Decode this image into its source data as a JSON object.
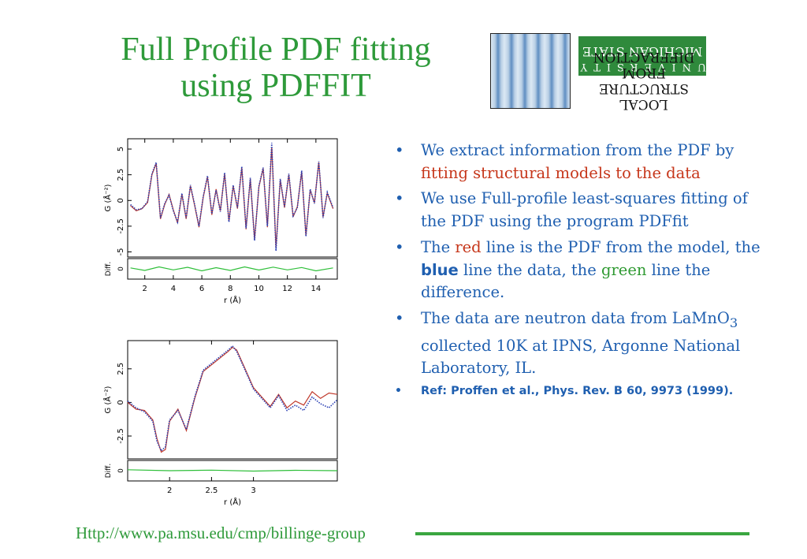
{
  "slide": {
    "title_line1": "Full Profile PDF fitting",
    "title_line2": "using PDFFIT",
    "footer_url": "Http://www.pa.msu.edu/cmp/billinge-group"
  },
  "logo": {
    "msu_top": "UNIVERSITY",
    "msu_bottom": "MICHIGAN STATE",
    "lsd_line1": "LOCAL STRUCTURE",
    "lsd_line2": "FROM DIFFRACTION"
  },
  "bullets": {
    "b1_a": "We extract information from the PDF by ",
    "b1_b": "fitting structural models to the data",
    "b2": "We use Full-profile least-squares fitting of the PDF using the program PDFfit",
    "b3_a": "The ",
    "b3_b": "red",
    "b3_c": " line is the PDF from the model, the ",
    "b3_d": "blue",
    "b3_e": " line the data, the ",
    "b3_f": "green",
    "b3_g": " line the difference.",
    "b4_a": "The data are neutron data from LaMnO",
    "b4_sub": "3",
    "b4_b": " collected 10K at IPNS, Argonne National Laboratory, IL.",
    "ref": "Ref: Proffen et al., Phys. Rev. B 60, 9973 (1999)."
  },
  "chart_data": [
    {
      "type": "line",
      "xlabel": "r (Å)",
      "ylabel": "G (Å⁻²)",
      "diff_label": "Diff.",
      "xlim": [
        0.8,
        15.5
      ],
      "ylim": [
        -5.5,
        6
      ],
      "x_ticks": [
        "2",
        "4",
        "6",
        "8",
        "10",
        "12",
        "14"
      ],
      "y_ticks": [
        "5",
        "2.5",
        "0",
        "-2.5",
        "-5"
      ],
      "diff_ticks": [
        "0"
      ],
      "series": [
        {
          "color": "#c0392b",
          "x": [
            1.0,
            1.4,
            1.8,
            2.2,
            2.5,
            2.8,
            3.1,
            3.4,
            3.7,
            4.0,
            4.3,
            4.6,
            4.9,
            5.2,
            5.5,
            5.8,
            6.1,
            6.4,
            6.7,
            7.0,
            7.3,
            7.6,
            7.9,
            8.2,
            8.5,
            8.8,
            9.1,
            9.4,
            9.7,
            10.0,
            10.3,
            10.6,
            10.9,
            11.2,
            11.5,
            11.8,
            12.1,
            12.4,
            12.7,
            13.0,
            13.3,
            13.6,
            13.9,
            14.2,
            14.5,
            14.8,
            15.2
          ],
          "values": [
            -0.5,
            -1.0,
            -0.8,
            -0.2,
            2.5,
            3.6,
            -1.8,
            -0.4,
            0.6,
            -0.9,
            -2.2,
            0.6,
            -1.8,
            1.4,
            -0.5,
            -2.6,
            0.3,
            2.3,
            -1.4,
            1.1,
            -1.0,
            2.6,
            -2.0,
            1.4,
            -0.8,
            3.2,
            -2.8,
            2.1,
            -3.8,
            1.3,
            3.1,
            -2.6,
            5.2,
            -4.6,
            2.0,
            -0.7,
            2.5,
            -1.6,
            -0.6,
            2.8,
            -3.4,
            1.0,
            -0.2,
            3.7,
            -1.6,
            0.7,
            -0.8
          ]
        },
        {
          "color": "#2a3fb3",
          "x": [
            1.0,
            1.4,
            1.8,
            2.2,
            2.5,
            2.8,
            3.1,
            3.4,
            3.7,
            4.0,
            4.3,
            4.6,
            4.9,
            5.2,
            5.5,
            5.8,
            6.1,
            6.4,
            6.7,
            7.0,
            7.3,
            7.6,
            7.9,
            8.2,
            8.5,
            8.8,
            9.1,
            9.4,
            9.7,
            10.0,
            10.3,
            10.6,
            10.9,
            11.2,
            11.5,
            11.8,
            12.1,
            12.4,
            12.7,
            13.0,
            13.3,
            13.6,
            13.9,
            14.2,
            14.5,
            14.8,
            15.2
          ],
          "values": [
            -0.4,
            -0.9,
            -0.8,
            -0.1,
            2.6,
            3.7,
            -1.7,
            -0.3,
            0.5,
            -1.0,
            -2.1,
            0.7,
            -1.7,
            1.5,
            -0.4,
            -2.5,
            0.4,
            2.4,
            -1.3,
            1.0,
            -1.1,
            2.7,
            -2.1,
            1.5,
            -0.7,
            3.3,
            -2.7,
            2.2,
            -3.9,
            1.4,
            3.2,
            -2.5,
            5.6,
            -4.9,
            2.1,
            -0.6,
            2.6,
            -1.5,
            -0.7,
            2.9,
            -3.5,
            1.1,
            -0.3,
            3.8,
            -1.7,
            0.8,
            -0.7
          ]
        },
        {
          "color": "#2fbf3a",
          "x": [
            1.0,
            2.0,
            3.0,
            4.0,
            5.0,
            6.0,
            7.0,
            8.0,
            9.0,
            10.0,
            11.0,
            12.0,
            13.0,
            14.0,
            15.2
          ],
          "values": [
            0.05,
            -0.08,
            0.1,
            -0.05,
            0.08,
            -0.1,
            0.06,
            -0.08,
            0.1,
            -0.06,
            0.09,
            -0.05,
            0.07,
            -0.1,
            0.05
          ]
        }
      ]
    },
    {
      "type": "line",
      "xlabel": "r (Å)",
      "ylabel": "G (Å⁻²)",
      "diff_label": "Diff.",
      "xlim": [
        1.5,
        4.0
      ],
      "ylim": [
        -4.2,
        4.6
      ],
      "x_ticks": [
        "2",
        "2.5",
        "3"
      ],
      "y_ticks": [
        "2.5",
        "0",
        "-2.5"
      ],
      "diff_ticks": [
        "0"
      ],
      "series": [
        {
          "color": "#c0392b",
          "x": [
            1.5,
            1.6,
            1.7,
            1.8,
            1.85,
            1.9,
            1.95,
            2.0,
            2.1,
            2.2,
            2.3,
            2.4,
            2.5,
            2.6,
            2.7,
            2.75,
            2.8,
            2.9,
            3.0,
            3.1,
            3.2,
            3.3,
            3.4,
            3.5,
            3.6,
            3.7,
            3.8,
            3.9,
            4.0
          ],
          "values": [
            0.0,
            -0.5,
            -0.6,
            -1.3,
            -2.7,
            -3.7,
            -3.5,
            -1.4,
            -0.5,
            -2.1,
            0.3,
            2.3,
            2.8,
            3.3,
            3.8,
            4.1,
            3.9,
            2.5,
            1.1,
            0.4,
            -0.3,
            0.6,
            -0.4,
            0.1,
            -0.2,
            0.8,
            0.3,
            0.7,
            0.6
          ]
        },
        {
          "color": "#2a3fb3",
          "x": [
            1.5,
            1.6,
            1.7,
            1.8,
            1.85,
            1.9,
            1.95,
            2.0,
            2.1,
            2.2,
            2.3,
            2.4,
            2.5,
            2.6,
            2.7,
            2.75,
            2.8,
            2.9,
            3.0,
            3.1,
            3.2,
            3.3,
            3.4,
            3.5,
            3.6,
            3.7,
            3.8,
            3.9,
            4.0
          ],
          "values": [
            0.1,
            -0.4,
            -0.7,
            -1.4,
            -2.9,
            -3.6,
            -3.3,
            -1.3,
            -0.6,
            -2.0,
            0.4,
            2.4,
            2.9,
            3.4,
            3.9,
            4.2,
            3.8,
            2.4,
            1.0,
            0.3,
            -0.4,
            0.5,
            -0.6,
            -0.2,
            -0.6,
            0.4,
            -0.1,
            -0.4,
            0.2
          ]
        },
        {
          "color": "#2fbf3a",
          "x": [
            1.5,
            2.0,
            2.5,
            3.0,
            3.5,
            4.0
          ],
          "values": [
            0.05,
            0.0,
            0.03,
            -0.02,
            0.02,
            0.0
          ]
        }
      ]
    }
  ]
}
